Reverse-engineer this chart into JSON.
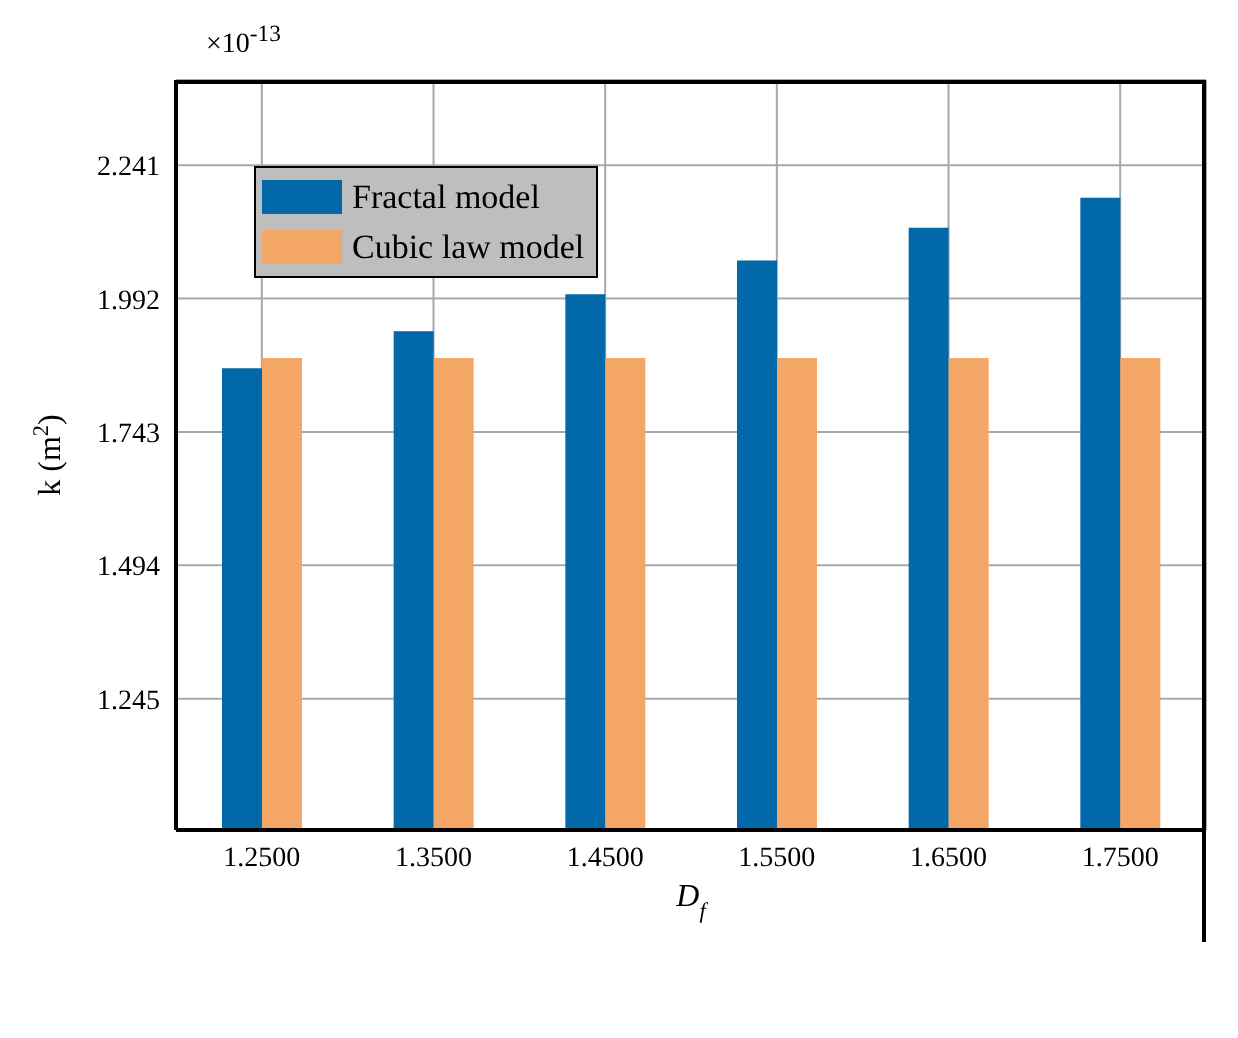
{
  "chart_data": {
    "type": "bar",
    "xlabel": "D$_{f}$",
    "ylabel": "k (m$^{2}$)",
    "annotations": [
      "×10$^{-13}$"
    ],
    "categories": [
      "1.2500",
      "1.3500",
      "1.4500",
      "1.5500",
      "1.6500",
      "1.7500"
    ],
    "series": [
      {
        "name": "Fractal model",
        "color": "#0169aa",
        "values": [
          1.862,
          1.931,
          2.0,
          2.063,
          2.124,
          2.18
        ]
      },
      {
        "name": "Cubic law model",
        "color": "#f4a666",
        "values": [
          1.881,
          1.881,
          1.881,
          1.881,
          1.881,
          1.881
        ]
      }
    ],
    "ylim": [
      1.0,
      2.4
    ],
    "yticks": [
      1.245,
      1.494,
      1.743,
      1.992,
      2.241
    ],
    "grid": true,
    "legend": "top left"
  }
}
